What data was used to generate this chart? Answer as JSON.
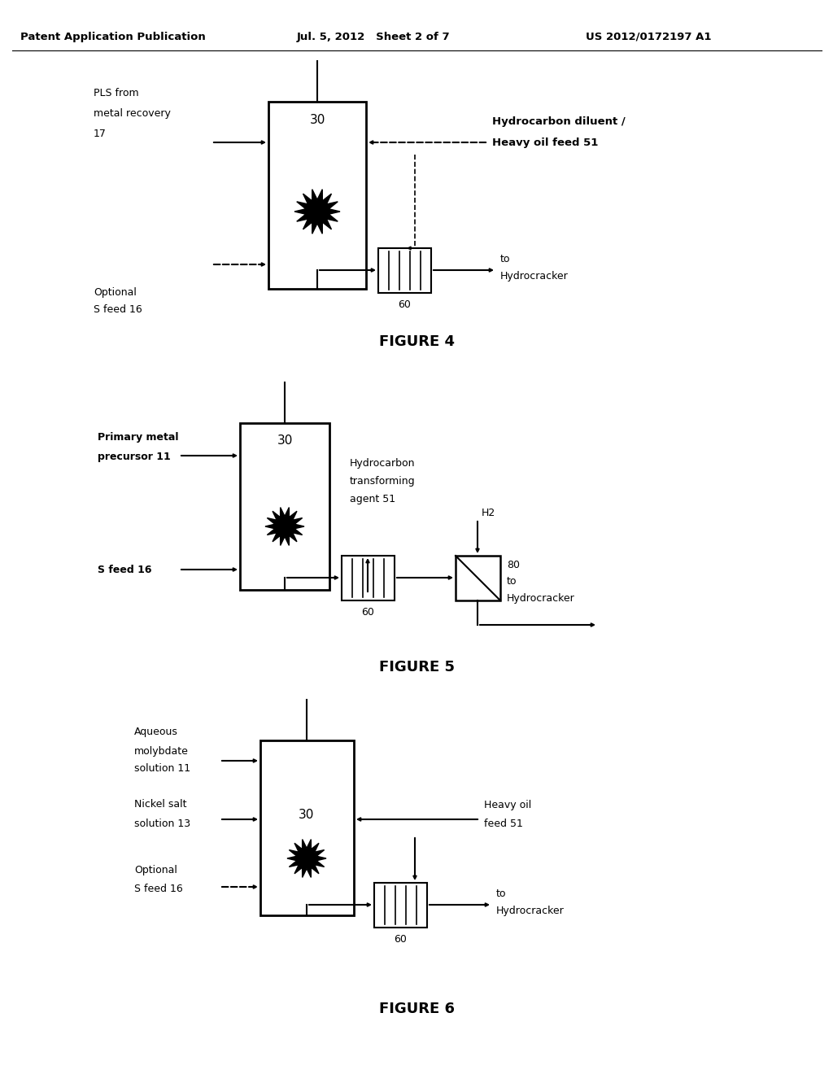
{
  "header_left": "Patent Application Publication",
  "header_mid": "Jul. 5, 2012   Sheet 2 of 7",
  "header_right": "US 2012/0172197 A1",
  "fig4_title": "FIGURE 4",
  "fig5_title": "FIGURE 5",
  "fig6_title": "FIGURE 6",
  "bg_color": "#ffffff"
}
